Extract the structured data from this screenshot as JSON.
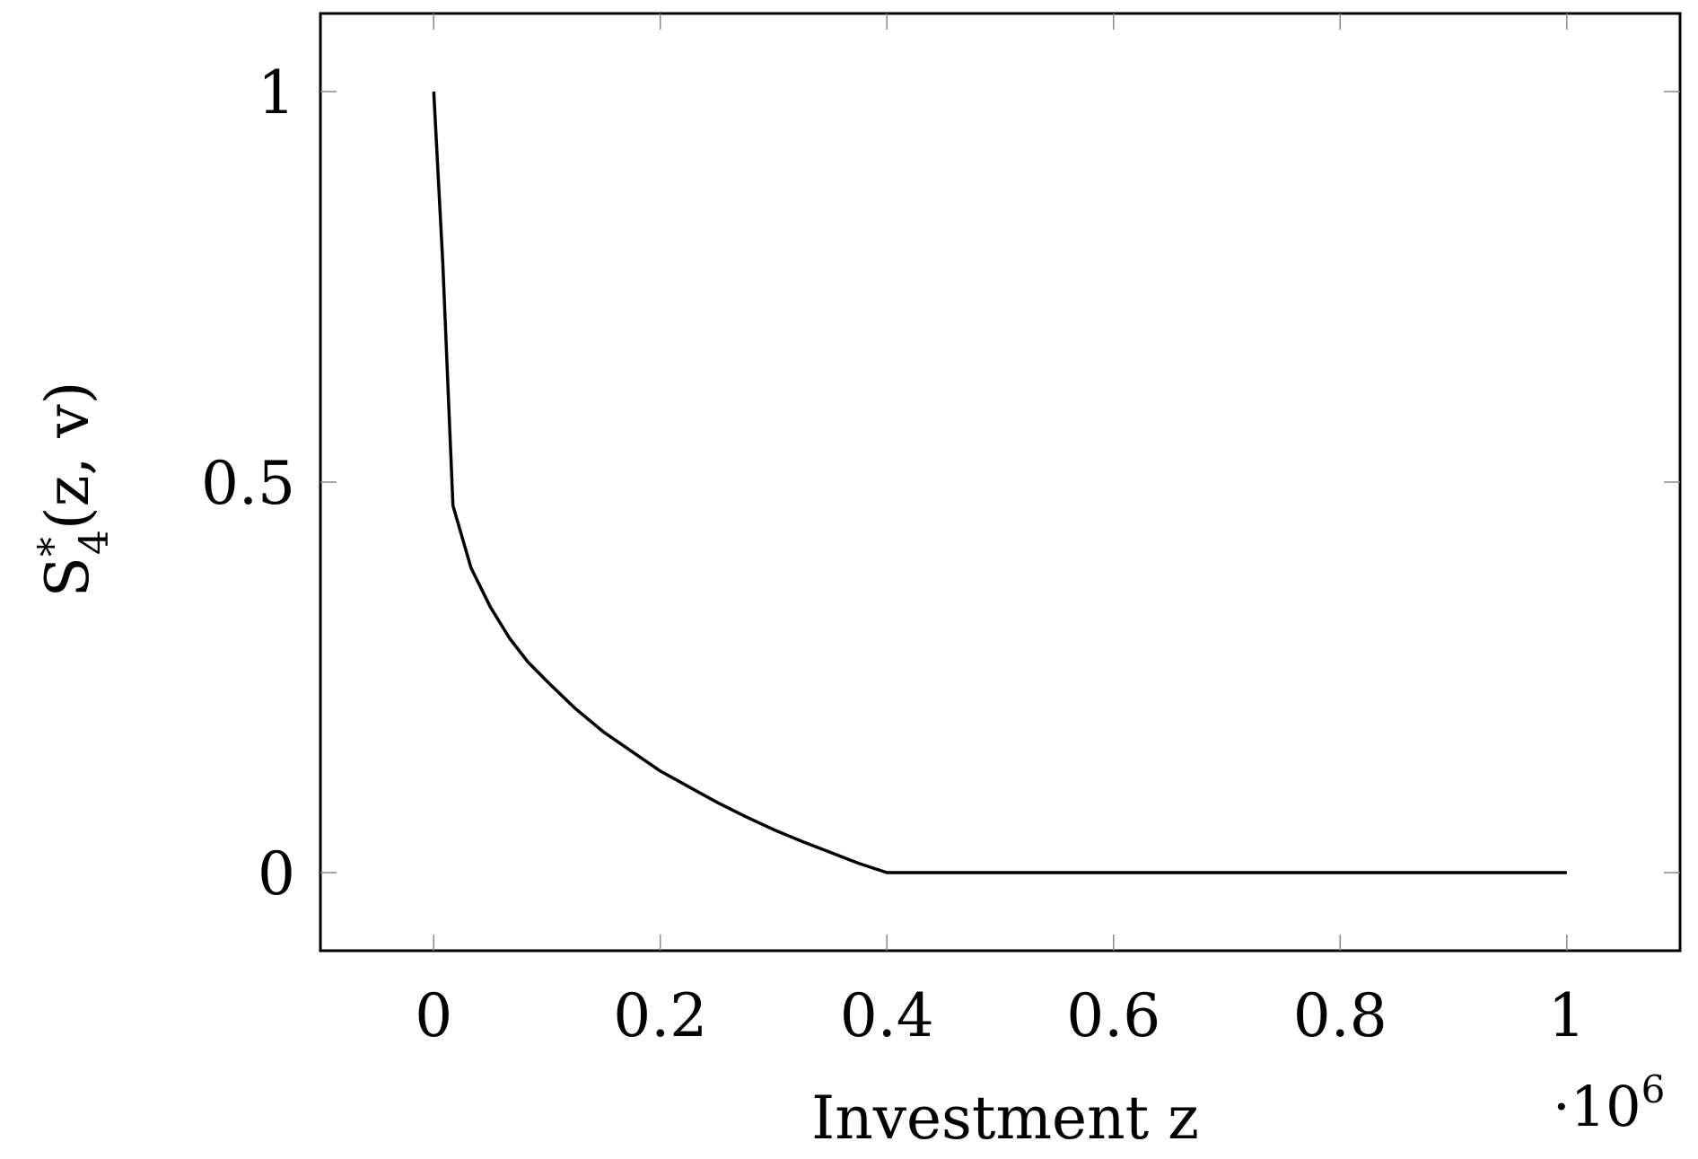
{
  "chart_data": {
    "type": "line",
    "title": "",
    "xlabel": "Investment z",
    "ylabel": "S*4(z, v)",
    "ylabel_parts": {
      "base": "S",
      "sup": "*",
      "sub": "4",
      "args": "(z, v)"
    },
    "x_multiplier": "·10",
    "x_multiplier_exp": "6",
    "xlim": [
      -0.1,
      1.1
    ],
    "ylim": [
      -0.1,
      1.1
    ],
    "grid": false,
    "x_ticks": [
      0,
      0.2,
      0.4,
      0.6,
      0.8,
      1
    ],
    "x_tick_labels": [
      "0",
      "0.2",
      "0.4",
      "0.6",
      "0.8",
      "1"
    ],
    "y_ticks": [
      0,
      0.5,
      1
    ],
    "y_tick_labels": [
      "0",
      "0.5",
      "1"
    ],
    "series": [
      {
        "color": "#000000",
        "x": [
          0,
          0.008,
          0.017,
          0.033,
          0.05,
          0.067,
          0.083,
          0.1,
          0.125,
          0.15,
          0.175,
          0.2,
          0.225,
          0.25,
          0.275,
          0.3,
          0.325,
          0.35,
          0.375,
          0.4,
          0.5,
          0.6,
          0.7,
          0.8,
          0.9,
          1.0
        ],
        "y": [
          1.0,
          0.78,
          0.47,
          0.39,
          0.34,
          0.3,
          0.27,
          0.245,
          0.21,
          0.18,
          0.155,
          0.13,
          0.11,
          0.09,
          0.072,
          0.055,
          0.04,
          0.026,
          0.012,
          0.0,
          0.0,
          0.0,
          0.0,
          0.0,
          0.0,
          0.0
        ]
      }
    ]
  }
}
